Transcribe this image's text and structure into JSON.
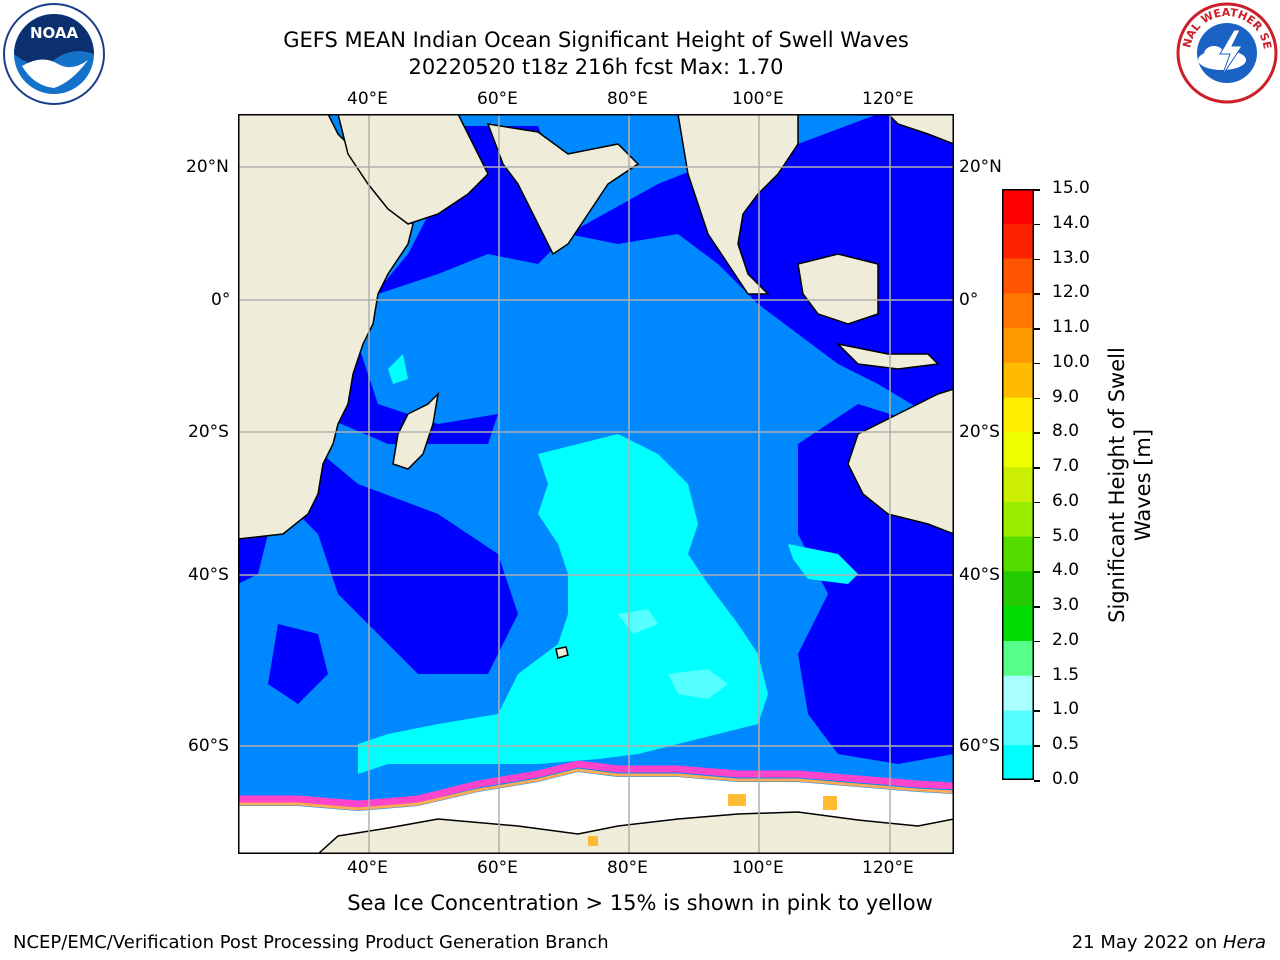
{
  "title": {
    "line1": "GEFS MEAN Indian Ocean Significant Height of Swell Waves",
    "line2": "20220520 t18z 216h fcst   Max: 1.70"
  },
  "logos": {
    "noaa_text": "NOAA",
    "nws_text": "NATIONAL WEATHER SERVICE"
  },
  "map": {
    "lon_labels_top": [
      "40°E",
      "60°E",
      "80°E",
      "100°E",
      "120°E"
    ],
    "lon_labels_bottom": [
      "40°E",
      "60°E",
      "80°E",
      "100°E",
      "120°E"
    ],
    "lat_labels_left": [
      "20°N",
      "0°",
      "20°S",
      "40°S",
      "60°S"
    ],
    "lat_labels_right": [
      "20°N",
      "0°",
      "20°S",
      "40°S",
      "60°S"
    ],
    "colors": {
      "land": "#efedd9",
      "sea_ice": "#ffffff",
      "ice_edge": "#ff44cc",
      "grid": "#b0b0b0"
    }
  },
  "colorbar": {
    "label": "Significant Height of Swell Waves [m]",
    "ticks": [
      "15.0",
      "14.0",
      "13.0",
      "12.0",
      "11.0",
      "10.0",
      "9.0",
      "8.0",
      "7.0",
      "6.0",
      "5.0",
      "4.0",
      "3.0",
      "2.0",
      "1.5",
      "1.0",
      "0.5",
      "0.0"
    ],
    "colors": [
      "#ff0000",
      "#ff2200",
      "#ff5500",
      "#ff7700",
      "#ff9900",
      "#ffbb00",
      "#ffee00",
      "#eeff00",
      "#ccee00",
      "#99ee00",
      "#55dd00",
      "#22cc00",
      "#00dd00",
      "#55ff88",
      "#aaffff",
      "#55ffff",
      "#00ffff",
      "#0088ff",
      "#0000ff"
    ]
  },
  "caption": "Sea Ice Concentration > 15% is shown in pink to yellow",
  "footer": {
    "left": "NCEP/EMC/Verification Post Processing Product Generation Branch",
    "right_date": "21 May 2022 on ",
    "right_machine": "Hera"
  }
}
